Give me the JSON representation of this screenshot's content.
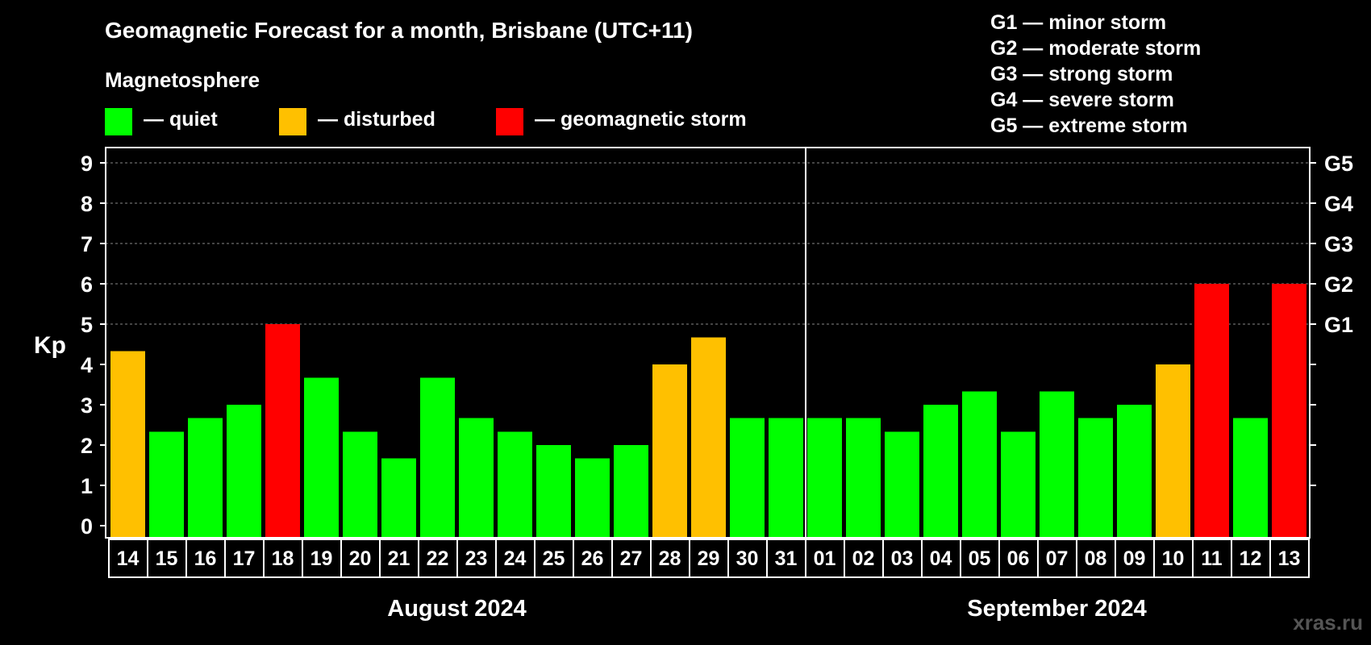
{
  "chart_data": {
    "type": "bar",
    "title": "Geomagnetic Forecast for a month, Brisbane (UTC+11)",
    "subtitle": "Magnetosphere",
    "ylabel": "Kp",
    "ylim": [
      0,
      9
    ],
    "yticks": [
      "0",
      "1",
      "2",
      "3",
      "4",
      "5",
      "6",
      "7",
      "8",
      "9"
    ],
    "right_ticks": [
      {
        "value": 5,
        "label": "G1"
      },
      {
        "value": 6,
        "label": "G2"
      },
      {
        "value": 7,
        "label": "G3"
      },
      {
        "value": 8,
        "label": "G4"
      },
      {
        "value": 9,
        "label": "G5"
      }
    ],
    "legend": [
      {
        "label": "— quiet",
        "color": "#00ff00"
      },
      {
        "label": "— disturbed",
        "color": "#ffc000"
      },
      {
        "label": "— geomagnetic storm",
        "color": "#ff0000"
      }
    ],
    "storm_scale": [
      "G1 — minor storm",
      "G2 — moderate storm",
      "G3 — strong storm",
      "G4 — severe storm",
      "G5 — extreme storm"
    ],
    "months": [
      {
        "label": "August 2024",
        "start": 0,
        "end": 17
      },
      {
        "label": "September 2024",
        "start": 18,
        "end": 30
      }
    ],
    "categories": [
      "14",
      "15",
      "16",
      "17",
      "18",
      "19",
      "20",
      "21",
      "22",
      "23",
      "24",
      "25",
      "26",
      "27",
      "28",
      "29",
      "30",
      "31",
      "01",
      "02",
      "03",
      "04",
      "05",
      "06",
      "07",
      "08",
      "09",
      "10",
      "11",
      "12",
      "13"
    ],
    "values": [
      4.33,
      2.33,
      2.67,
      3,
      5,
      3.67,
      2.33,
      1.67,
      3.67,
      2.67,
      2.33,
      2,
      1.67,
      2,
      4,
      4.67,
      2.67,
      2.67,
      2.67,
      2.67,
      2.33,
      3,
      3.33,
      2.33,
      3.33,
      2.67,
      3,
      4,
      6,
      2.67,
      6
    ],
    "status": [
      "disturbed",
      "quiet",
      "quiet",
      "quiet",
      "storm",
      "quiet",
      "quiet",
      "quiet",
      "quiet",
      "quiet",
      "quiet",
      "quiet",
      "quiet",
      "quiet",
      "disturbed",
      "disturbed",
      "quiet",
      "quiet",
      "quiet",
      "quiet",
      "quiet",
      "quiet",
      "quiet",
      "quiet",
      "quiet",
      "quiet",
      "quiet",
      "disturbed",
      "storm",
      "quiet",
      "storm"
    ],
    "colors": {
      "quiet": "#00ff00",
      "disturbed": "#ffc000",
      "storm": "#ff0000"
    },
    "grid": true
  },
  "watermark": "xras.ru"
}
